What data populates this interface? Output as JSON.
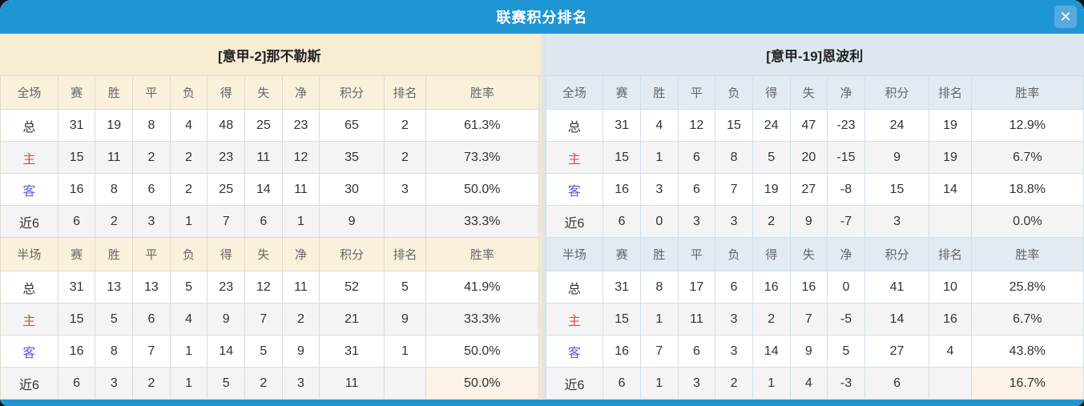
{
  "window": {
    "title": "联赛积分排名",
    "close_glyph": "✕"
  },
  "columns": {
    "full_label": "全场",
    "half_label": "半场",
    "stats": [
      "赛",
      "胜",
      "平",
      "负",
      "得",
      "失",
      "净",
      "积分",
      "排名",
      "胜率"
    ]
  },
  "colors": {
    "titlebar": "#1e96d4",
    "left_theme": "#f8ecd3",
    "right_theme": "#dce7ee",
    "points_red": "#f93b20",
    "rank_blue": "#2e86d8",
    "home_red": "#e64747",
    "away_blue": "#5d5dd8"
  },
  "teams": [
    {
      "name": "[意甲-2]那不勒斯",
      "full": {
        "rows": [
          {
            "label": "总",
            "values": [
              "31",
              "19",
              "8",
              "4",
              "48",
              "25",
              "23"
            ],
            "points": "65",
            "rank": "2",
            "rate": "61.3%"
          },
          {
            "label": "主",
            "values": [
              "15",
              "11",
              "2",
              "2",
              "23",
              "11",
              "12"
            ],
            "points": "35",
            "rank": "2",
            "rate": "73.3%"
          },
          {
            "label": "客",
            "values": [
              "16",
              "8",
              "6",
              "2",
              "25",
              "14",
              "11"
            ],
            "points": "30",
            "rank": "3",
            "rate": "50.0%"
          },
          {
            "label": "近6",
            "values": [
              "6",
              "2",
              "3",
              "1",
              "7",
              "6",
              "1"
            ],
            "points": "9",
            "rank": "",
            "rate": "33.3%"
          }
        ]
      },
      "half": {
        "rows": [
          {
            "label": "总",
            "values": [
              "31",
              "13",
              "13",
              "5",
              "23",
              "12",
              "11"
            ],
            "points": "52",
            "rank": "5",
            "rate": "41.9%"
          },
          {
            "label": "主",
            "values": [
              "15",
              "5",
              "6",
              "4",
              "9",
              "7",
              "2"
            ],
            "points": "21",
            "rank": "9",
            "rate": "33.3%"
          },
          {
            "label": "客",
            "values": [
              "16",
              "8",
              "7",
              "1",
              "14",
              "5",
              "9"
            ],
            "points": "31",
            "rank": "1",
            "rate": "50.0%"
          },
          {
            "label": "近6",
            "values": [
              "6",
              "3",
              "2",
              "1",
              "5",
              "2",
              "3"
            ],
            "points": "11",
            "rank": "",
            "rate": "50.0%"
          }
        ]
      }
    },
    {
      "name": "[意甲-19]恩波利",
      "full": {
        "rows": [
          {
            "label": "总",
            "values": [
              "31",
              "4",
              "12",
              "15",
              "24",
              "47",
              "-23"
            ],
            "points": "24",
            "rank": "19",
            "rate": "12.9%"
          },
          {
            "label": "主",
            "values": [
              "15",
              "1",
              "6",
              "8",
              "5",
              "20",
              "-15"
            ],
            "points": "9",
            "rank": "19",
            "rate": "6.7%"
          },
          {
            "label": "客",
            "values": [
              "16",
              "3",
              "6",
              "7",
              "19",
              "27",
              "-8"
            ],
            "points": "15",
            "rank": "14",
            "rate": "18.8%"
          },
          {
            "label": "近6",
            "values": [
              "6",
              "0",
              "3",
              "3",
              "2",
              "9",
              "-7"
            ],
            "points": "3",
            "rank": "",
            "rate": "0.0%"
          }
        ]
      },
      "half": {
        "rows": [
          {
            "label": "总",
            "values": [
              "31",
              "8",
              "17",
              "6",
              "16",
              "16",
              "0"
            ],
            "points": "41",
            "rank": "10",
            "rate": "25.8%"
          },
          {
            "label": "主",
            "values": [
              "15",
              "1",
              "11",
              "3",
              "2",
              "7",
              "-5"
            ],
            "points": "14",
            "rank": "16",
            "rate": "6.7%"
          },
          {
            "label": "客",
            "values": [
              "16",
              "7",
              "6",
              "3",
              "14",
              "9",
              "5"
            ],
            "points": "27",
            "rank": "4",
            "rate": "43.8%"
          },
          {
            "label": "近6",
            "values": [
              "6",
              "1",
              "3",
              "2",
              "1",
              "4",
              "-3"
            ],
            "points": "6",
            "rank": "",
            "rate": "16.7%"
          }
        ]
      }
    }
  ]
}
